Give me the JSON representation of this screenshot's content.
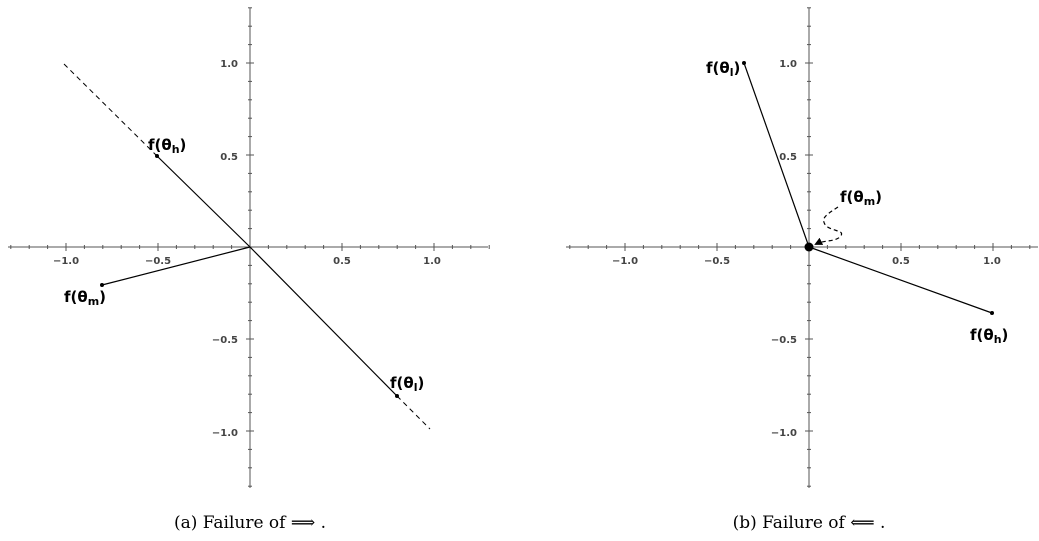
{
  "panels": [
    {
      "id": "a",
      "caption": "(a)  Failure of ⟹ .",
      "x_ticks": [
        -1.0,
        -0.5,
        0.5,
        1.0
      ],
      "y_ticks": [
        1.0,
        0.5,
        -0.5,
        -1.0
      ],
      "x_tick_labels": [
        "−1.0",
        "−0.5",
        "0.5",
        "1.0"
      ],
      "y_tick_labels": [
        "1.0",
        "0.5",
        "−0.5",
        "−1.0"
      ],
      "points": [
        {
          "name": "theta-h",
          "label_main": "f(θ",
          "label_sub": "h",
          "label_close": ")",
          "x": -0.5,
          "y": 0.5
        },
        {
          "name": "theta-m",
          "label_main": "f(θ",
          "label_sub": "m",
          "label_close": ")",
          "x": -0.8,
          "y": -0.2
        },
        {
          "name": "theta-l",
          "label_main": "f(θ",
          "label_sub": "l",
          "label_close": ")",
          "x": 0.8,
          "y": -0.8
        }
      ],
      "dashed_line_ends": [
        [
          -1.0,
          1.0
        ],
        [
          1.0,
          -1.0
        ]
      ]
    },
    {
      "id": "b",
      "caption": "(b)  Failure of ⟸ .",
      "x_ticks": [
        -1.0,
        -0.5,
        0.5,
        1.0
      ],
      "y_ticks": [
        1.0,
        0.5,
        -0.5,
        -1.0
      ],
      "x_tick_labels": [
        "−1.0",
        "−0.5",
        "0.5",
        "1.0"
      ],
      "y_tick_labels": [
        "1.0",
        "0.5",
        "−0.5",
        "−1.0"
      ],
      "points": [
        {
          "name": "theta-l",
          "label_main": "f(θ",
          "label_sub": "l",
          "label_close": ")",
          "x": -0.35,
          "y": 1.0
        },
        {
          "name": "theta-h",
          "label_main": "f(θ",
          "label_sub": "h",
          "label_close": ")",
          "x": 1.0,
          "y": -0.35
        },
        {
          "name": "theta-m",
          "label_main": "f(θ",
          "label_sub": "m",
          "label_close": ")",
          "x": 0.0,
          "y": 0.0
        }
      ]
    }
  ]
}
